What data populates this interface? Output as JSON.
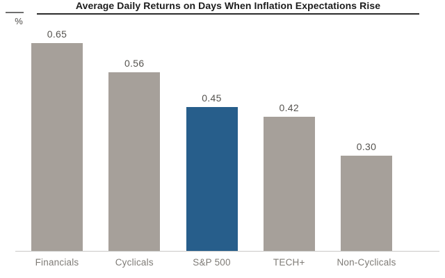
{
  "chart_data": {
    "type": "bar",
    "title": "Average Daily Returns on Days When Inflation Expectations Rise",
    "ylabel": "%",
    "xlabel": "",
    "categories": [
      "Financials",
      "Cyclicals",
      "S&P 500",
      "TECH+",
      "Non-Cyclicals"
    ],
    "values": [
      0.65,
      0.56,
      0.45,
      0.42,
      0.3
    ],
    "value_labels": [
      "0.65",
      "0.56",
      "0.45",
      "0.42",
      "0.30"
    ],
    "ylim": [
      0,
      0.7
    ],
    "grid": false,
    "legend": false,
    "highlight_category": "S&P 500",
    "colors": {
      "default_bar": "#a6a09a",
      "highlight_bar": "#275e8b",
      "title_text": "#1c1c1c",
      "value_label_text": "#55534f",
      "category_label_text": "#7e7b76",
      "axis_line": "#c9c8c6"
    }
  }
}
